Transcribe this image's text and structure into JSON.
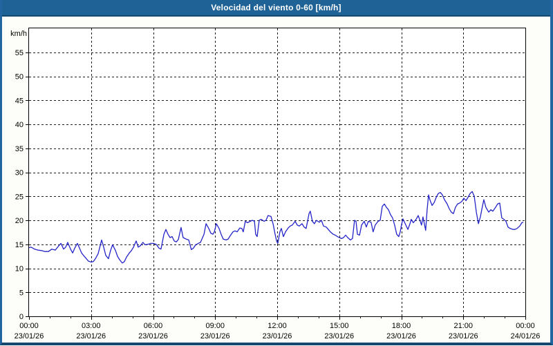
{
  "window": {
    "title": "Velocidad del viento 0-60 [km/h]"
  },
  "chart_data": {
    "type": "line",
    "title": "Velocidad del viento 0-60 [km/h]",
    "ylabel": "km/h",
    "xlabel": "",
    "legend": "none",
    "grid": "dashed horizontal every 5 km/h, dashed vertical every 3 h",
    "line_color": "#2323c8",
    "plot_background": "#ffffff",
    "y_axis": {
      "min": 0,
      "max": 60,
      "tick_step": 5,
      "tick_labels": [
        "0",
        "5",
        "10",
        "15",
        "20",
        "25",
        "30",
        "35",
        "40",
        "45",
        "50",
        "55"
      ]
    },
    "x_axis": {
      "min_hours": 0,
      "max_hours": 24,
      "minor_tick_hours": 1,
      "ticks": [
        {
          "h": 0,
          "time": "00:00",
          "date": "23/01/26"
        },
        {
          "h": 3,
          "time": "03:00",
          "date": "23/01/26"
        },
        {
          "h": 6,
          "time": "06:00",
          "date": "23/01/26"
        },
        {
          "h": 9,
          "time": "09:00",
          "date": "23/01/26"
        },
        {
          "h": 12,
          "time": "12:00",
          "date": "23/01/26"
        },
        {
          "h": 15,
          "time": "15:00",
          "date": "23/01/26"
        },
        {
          "h": 18,
          "time": "18:00",
          "date": "23/01/26"
        },
        {
          "h": 21,
          "time": "21:00",
          "date": "23/01/26"
        },
        {
          "h": 24,
          "time": "00:00",
          "date": "24/01/26"
        }
      ]
    },
    "series": [
      {
        "points": [
          [
            0,
            14.3
          ],
          [
            0.1,
            14.4
          ],
          [
            0.27,
            14.0
          ],
          [
            0.43,
            13.8
          ],
          [
            0.6,
            13.7
          ],
          [
            0.77,
            13.5
          ],
          [
            0.94,
            13.5
          ],
          [
            1.1,
            14.0
          ],
          [
            1.27,
            13.8
          ],
          [
            1.44,
            14.7
          ],
          [
            1.54,
            15.2
          ],
          [
            1.67,
            14.0
          ],
          [
            1.77,
            14.4
          ],
          [
            1.87,
            15.4
          ],
          [
            2.01,
            14.0
          ],
          [
            2.11,
            13.2
          ],
          [
            2.21,
            14.2
          ],
          [
            2.34,
            15.2
          ],
          [
            2.44,
            14.2
          ],
          [
            2.54,
            13.2
          ],
          [
            2.67,
            12.5
          ],
          [
            2.77,
            12.0
          ],
          [
            2.87,
            11.5
          ],
          [
            3.01,
            11.3
          ],
          [
            3.11,
            11.4
          ],
          [
            3.21,
            12.0
          ],
          [
            3.34,
            13.0
          ],
          [
            3.44,
            14.7
          ],
          [
            3.51,
            15.9
          ],
          [
            3.61,
            14.4
          ],
          [
            3.71,
            12.7
          ],
          [
            3.84,
            12.0
          ],
          [
            3.94,
            13.7
          ],
          [
            4.04,
            14.9
          ],
          [
            4.18,
            13.7
          ],
          [
            4.28,
            12.5
          ],
          [
            4.38,
            11.8
          ],
          [
            4.51,
            11.1
          ],
          [
            4.61,
            11.4
          ],
          [
            4.71,
            12.3
          ],
          [
            4.85,
            13.2
          ],
          [
            4.95,
            13.7
          ],
          [
            5.05,
            14.4
          ],
          [
            5.18,
            15.7
          ],
          [
            5.28,
            14.4
          ],
          [
            5.38,
            14.7
          ],
          [
            5.51,
            15.4
          ],
          [
            5.61,
            14.9
          ],
          [
            5.75,
            15.0
          ],
          [
            5.88,
            15.2
          ],
          [
            6.02,
            15.2
          ],
          [
            6.15,
            15.0
          ],
          [
            6.28,
            14.2
          ],
          [
            6.38,
            14.0
          ],
          [
            6.52,
            17.1
          ],
          [
            6.62,
            18.1
          ],
          [
            6.72,
            17.1
          ],
          [
            6.82,
            16.4
          ],
          [
            6.92,
            16.6
          ],
          [
            7.02,
            15.7
          ],
          [
            7.12,
            15.5
          ],
          [
            7.22,
            16.0
          ],
          [
            7.35,
            18.5
          ],
          [
            7.45,
            16.4
          ],
          [
            7.59,
            16.1
          ],
          [
            7.72,
            15.9
          ],
          [
            7.85,
            13.9
          ],
          [
            7.95,
            14.2
          ],
          [
            8.06,
            14.9
          ],
          [
            8.19,
            15.2
          ],
          [
            8.29,
            15.4
          ],
          [
            8.46,
            17.1
          ],
          [
            8.56,
            19.3
          ],
          [
            8.69,
            18.3
          ],
          [
            8.79,
            17.3
          ],
          [
            8.89,
            17.1
          ],
          [
            8.96,
            17.6
          ],
          [
            9.06,
            19.3
          ],
          [
            9.19,
            18.3
          ],
          [
            9.29,
            17.1
          ],
          [
            9.39,
            16.1
          ],
          [
            9.53,
            15.9
          ],
          [
            9.63,
            16.1
          ],
          [
            9.73,
            16.8
          ],
          [
            9.86,
            17.6
          ],
          [
            9.96,
            17.8
          ],
          [
            10.06,
            17.6
          ],
          [
            10.19,
            18.4
          ],
          [
            10.29,
            18.3
          ],
          [
            10.36,
            17.6
          ],
          [
            10.46,
            19.8
          ],
          [
            10.56,
            19.5
          ],
          [
            10.7,
            19.8
          ],
          [
            10.8,
            20.0
          ],
          [
            10.9,
            19.8
          ],
          [
            10.96,
            17.1
          ],
          [
            11.03,
            16.6
          ],
          [
            11.13,
            20.0
          ],
          [
            11.23,
            20.2
          ],
          [
            11.36,
            19.8
          ],
          [
            11.46,
            20.0
          ],
          [
            11.56,
            21.0
          ],
          [
            11.7,
            20.8
          ],
          [
            11.8,
            19.3
          ],
          [
            11.9,
            17.1
          ],
          [
            11.97,
            15.7
          ],
          [
            12.03,
            15.2
          ],
          [
            12.13,
            17.6
          ],
          [
            12.2,
            18.3
          ],
          [
            12.3,
            16.6
          ],
          [
            12.4,
            17.6
          ],
          [
            12.53,
            18.4
          ],
          [
            12.63,
            18.8
          ],
          [
            12.73,
            19.0
          ],
          [
            12.87,
            19.8
          ],
          [
            12.97,
            19.0
          ],
          [
            13.07,
            18.8
          ],
          [
            13.2,
            19.3
          ],
          [
            13.3,
            18.6
          ],
          [
            13.4,
            18.3
          ],
          [
            13.54,
            21.4
          ],
          [
            13.6,
            21.9
          ],
          [
            13.7,
            19.8
          ],
          [
            13.8,
            19.3
          ],
          [
            13.9,
            20.0
          ],
          [
            14.04,
            19.6
          ],
          [
            14.14,
            20.0
          ],
          [
            14.24,
            18.8
          ],
          [
            14.37,
            18.6
          ],
          [
            14.47,
            18.1
          ],
          [
            14.57,
            17.6
          ],
          [
            14.71,
            17.1
          ],
          [
            14.81,
            16.9
          ],
          [
            14.91,
            16.6
          ],
          [
            15.01,
            16.4
          ],
          [
            15.11,
            16.2
          ],
          [
            15.21,
            16.4
          ],
          [
            15.31,
            16.9
          ],
          [
            15.41,
            16.4
          ],
          [
            15.54,
            15.9
          ],
          [
            15.64,
            16.2
          ],
          [
            15.74,
            20.0
          ],
          [
            15.81,
            19.8
          ],
          [
            15.88,
            17.1
          ],
          [
            15.98,
            16.9
          ],
          [
            16.08,
            19.0
          ],
          [
            16.21,
            19.8
          ],
          [
            16.31,
            18.6
          ],
          [
            16.41,
            19.8
          ],
          [
            16.54,
            19.6
          ],
          [
            16.64,
            17.6
          ],
          [
            16.74,
            19.0
          ],
          [
            16.88,
            19.8
          ],
          [
            16.98,
            20.0
          ],
          [
            17.08,
            22.9
          ],
          [
            17.18,
            23.4
          ],
          [
            17.28,
            22.7
          ],
          [
            17.38,
            22.2
          ],
          [
            17.48,
            21.2
          ],
          [
            17.58,
            20.5
          ],
          [
            17.68,
            19.0
          ],
          [
            17.78,
            17.1
          ],
          [
            17.88,
            16.6
          ],
          [
            17.95,
            17.6
          ],
          [
            18.01,
            19.0
          ],
          [
            18.08,
            20.3
          ],
          [
            18.22,
            19.0
          ],
          [
            18.32,
            18.1
          ],
          [
            18.42,
            19.3
          ],
          [
            18.48,
            20.2
          ],
          [
            18.58,
            19.5
          ],
          [
            18.72,
            20.2
          ],
          [
            18.82,
            21.0
          ],
          [
            18.92,
            19.8
          ],
          [
            18.98,
            19.0
          ],
          [
            19.05,
            20.7
          ],
          [
            19.18,
            17.9
          ],
          [
            19.25,
            22.2
          ],
          [
            19.32,
            25.3
          ],
          [
            19.38,
            24.3
          ],
          [
            19.49,
            23.1
          ],
          [
            19.59,
            23.7
          ],
          [
            19.69,
            24.8
          ],
          [
            19.79,
            25.6
          ],
          [
            19.89,
            25.8
          ],
          [
            19.99,
            25.3
          ],
          [
            20.09,
            24.3
          ],
          [
            20.22,
            23.4
          ],
          [
            20.32,
            22.4
          ],
          [
            20.42,
            21.7
          ],
          [
            20.52,
            21.4
          ],
          [
            20.62,
            22.7
          ],
          [
            20.72,
            23.4
          ],
          [
            20.82,
            23.6
          ],
          [
            20.92,
            23.9
          ],
          [
            21.03,
            24.6
          ],
          [
            21.13,
            24.1
          ],
          [
            21.23,
            24.8
          ],
          [
            21.33,
            25.6
          ],
          [
            21.43,
            26.0
          ],
          [
            21.53,
            25.0
          ],
          [
            21.63,
            21.7
          ],
          [
            21.73,
            19.3
          ],
          [
            21.83,
            20.8
          ],
          [
            21.89,
            22.2
          ],
          [
            21.99,
            24.3
          ],
          [
            22.09,
            22.7
          ],
          [
            22.23,
            21.7
          ],
          [
            22.33,
            22.2
          ],
          [
            22.43,
            21.9
          ],
          [
            22.56,
            22.7
          ],
          [
            22.66,
            23.4
          ],
          [
            22.76,
            23.6
          ],
          [
            22.86,
            20.5
          ],
          [
            22.96,
            20.2
          ],
          [
            23.06,
            19.8
          ],
          [
            23.16,
            18.6
          ],
          [
            23.26,
            18.3
          ],
          [
            23.4,
            18.1
          ],
          [
            23.5,
            18.1
          ],
          [
            23.6,
            18.3
          ],
          [
            23.73,
            18.8
          ],
          [
            23.83,
            19.5
          ],
          [
            23.9,
            19.6
          ]
        ]
      }
    ]
  }
}
